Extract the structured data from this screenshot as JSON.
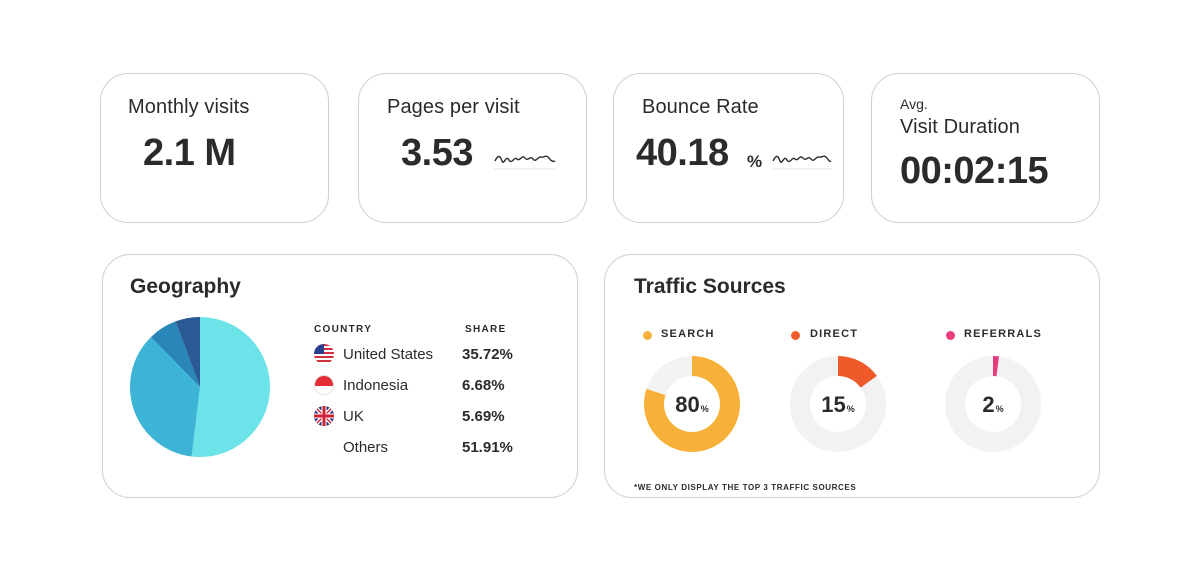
{
  "kpis": {
    "monthly_visits": {
      "title": "Monthly visits",
      "value": "2.1 M"
    },
    "pages_per_visit": {
      "title": "Pages per visit",
      "value": "3.53"
    },
    "bounce_rate": {
      "title": "Bounce Rate",
      "value": "40.18",
      "unit": "%"
    },
    "visit_duration": {
      "prefix": "Avg.",
      "title": "Visit Duration",
      "value": "00:02:15"
    }
  },
  "geography": {
    "title": "Geography",
    "headers": {
      "country": "COUNTRY",
      "share": "SHARE"
    },
    "rows": [
      {
        "country": "United States",
        "share": "35.72%",
        "flag": "us-flag-icon"
      },
      {
        "country": "Indonesia",
        "share": "6.68%",
        "flag": "indonesia-flag-icon"
      },
      {
        "country": "UK",
        "share": "5.69%",
        "flag": "uk-flag-icon"
      },
      {
        "country": "Others",
        "share": "51.91%",
        "flag": ""
      }
    ],
    "pie_colors": [
      "#6ce3e8",
      "#3db3d6",
      "#2a86b8",
      "#2a5a94"
    ]
  },
  "traffic": {
    "title": "Traffic Sources",
    "note": "*WE ONLY DISPLAY THE TOP 3 TRAFFIC SOURCES",
    "sources": [
      {
        "label": "SEARCH",
        "value": "80",
        "unit": "%",
        "fraction": 0.8,
        "color": "#f7b138"
      },
      {
        "label": "DIRECT",
        "value": "15",
        "unit": "%",
        "fraction": 0.15,
        "color": "#ef5a2a"
      },
      {
        "label": "REFERRALS",
        "value": "2",
        "unit": "%",
        "fraction": 0.02,
        "color": "#e83c7e"
      }
    ],
    "track_color": "#f2f2f2"
  },
  "chart_data": {
    "type": "pie",
    "categories": [
      "United States",
      "Indonesia",
      "UK",
      "Others"
    ],
    "values": [
      35.72,
      6.68,
      5.69,
      51.91
    ]
  }
}
